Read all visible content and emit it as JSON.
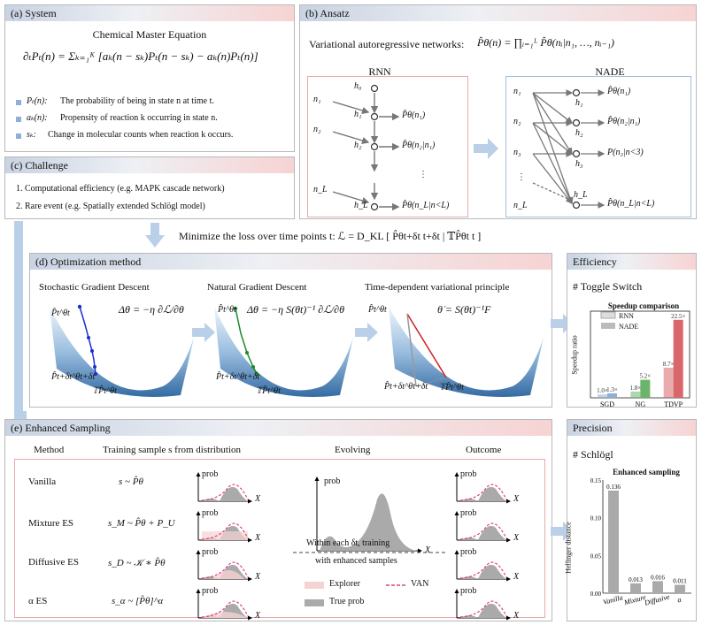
{
  "panel_a": {
    "header": "(a) System",
    "subtitle": "Chemical Master Equation",
    "equation": "∂ₜPₜ(n) = Σₖ₌₁ᴷ [aₖ(n − sₖ)Pₜ(n − sₖ) − aₖ(n)Pₜ(n)]",
    "def1_sym": "Pₜ(n):",
    "def1": "The probability of being in state n at time t.",
    "def2_sym": "aₖ(n):",
    "def2": "Propensity of reaction k occurring in state n.",
    "def3_sym": "sₖ:",
    "def3": "Change in molecular counts when reaction k occurs."
  },
  "panel_b": {
    "header": "(b) Ansatz",
    "desc": "Variational autoregressive networks:",
    "formula": "P̂θ(n) = ∏ᵢ₌₁ᴸ P̂θ(nᵢ|n₁, …, nᵢ₋₁)",
    "rnn_title": "RNN",
    "nade_title": "NADE",
    "rnn": {
      "h0": "h₀",
      "h1": "h₁",
      "h2": "h₂",
      "hL": "h_L",
      "n1": "n₁",
      "n2": "n₂",
      "nL": "n_L",
      "o1": "P̂θ(n₁)",
      "o2": "P̂θ(n₂|n₁)",
      "oL": "P̂θ(n_L|n<L)",
      "dots": "⋮"
    },
    "nade": {
      "n1": "n₁",
      "n2": "n₂",
      "n3": "n₃",
      "nL": "n_L",
      "h1": "h₁",
      "h2": "h₂",
      "h3": "h₃",
      "hL": "h_L",
      "o1": "P̂θ(n₁)",
      "o2": "P̂θ(n₂|n₁)",
      "o3": "P(n₃|n<3)",
      "oL": "P̂θ(n_L|n<L)",
      "dots": "⋮"
    }
  },
  "panel_c": {
    "header": "(c) Challenge",
    "item1": "1. Computational efficiency (e.g. MAPK cascade network)",
    "item2": "2. Rare event (e.g. Spatially extended Schlögl model)"
  },
  "loss_line": "Minimize the loss over time points t:  ℒ = D_KL [ P̂θt+δt t+δt | 𝕋P̂θt t ]",
  "panel_d": {
    "header": "(d) Optimization method",
    "sgd_title": "Stochastic Gradient Descent",
    "sgd_eq": "Δθ = −η ∂ℒ/∂θ",
    "ngd_title": "Natural Gradient Descent",
    "ngd_eq": "Δθ = −η S(θt)⁻¹ ∂ℒ/∂θ",
    "tdvp_title": "Time-dependent variational principle",
    "tdvp_eq": "θ̇ = S(θt)⁻¹F",
    "p_top": "P̂t^θt",
    "p_next": "P̂t+δt^θt+δt",
    "tp": "𝕋P̂t^θt"
  },
  "panel_eff": {
    "header": "Efficiency",
    "label": "# Toggle Switch",
    "chart_title": "Speedup comparison",
    "ylabel": "Speedup ratio",
    "legend_rnn": "RNN",
    "legend_nade": "NADE"
  },
  "panel_e": {
    "header": "(e) Enhanced Sampling",
    "col_method": "Method",
    "col_training": "Training sample s from distribution",
    "col_evolving": "Evolving",
    "col_outcome": "Outcome",
    "rows": [
      {
        "method": "Vanilla",
        "formula": "s ~ P̂θ"
      },
      {
        "method": "Mixture ES",
        "formula": "s_M ~ P̂θ + P_U"
      },
      {
        "method": "Diffusive ES",
        "formula": "s_D ~ 𝒦 ∗ P̂θ"
      },
      {
        "method": "α ES",
        "formula": "s_α ~ [P̂θ]^α"
      }
    ],
    "prob": "prob",
    "x": "X",
    "evolve_note1": "Within each δt, training",
    "evolve_note2": "with enhanced samples",
    "legend_explorer": "Explorer",
    "legend_van": "VAN",
    "legend_true": "True prob"
  },
  "panel_prec": {
    "header": "Precision",
    "label": "# Schlögl",
    "chart_title": "Enhanced sampling",
    "ylabel": "Hellinger distance"
  },
  "chart_data": [
    {
      "type": "bar",
      "title": "Speedup comparison",
      "ylabel": "Speedup ratio",
      "categories": [
        "SGD",
        "NG",
        "TDVP"
      ],
      "series": [
        {
          "name": "RNN",
          "values": [
            1.0,
            1.8,
            8.7
          ],
          "labels": [
            "1.0×",
            "1.8×",
            "8.7×"
          ]
        },
        {
          "name": "NADE",
          "values": [
            1.3,
            5.2,
            22.5
          ],
          "labels": [
            "1.3×",
            "5.2×",
            "22.5×"
          ]
        }
      ],
      "ylim": [
        0,
        25
      ],
      "colors": {
        "RNN": "#d98b8b",
        "NADE": "#d96a6a",
        "SGD": "#8fb0d4",
        "NG": "#6bb56b",
        "TDVP": "#d9666a"
      },
      "legend": "top-left"
    },
    {
      "type": "bar",
      "title": "Enhanced sampling",
      "ylabel": "Hellinger distance",
      "categories": [
        "Vanilla",
        "Mixture",
        "Diffusive",
        "α"
      ],
      "values": [
        0.136,
        0.013,
        0.016,
        0.011
      ],
      "labels": [
        "0.136",
        "0.013",
        "0.016",
        "0.011"
      ],
      "yticks": [
        "0.00",
        "0.05",
        "0.10",
        "0.15"
      ],
      "ylim": [
        0,
        0.15
      ],
      "color": "#aaaaaa"
    }
  ]
}
